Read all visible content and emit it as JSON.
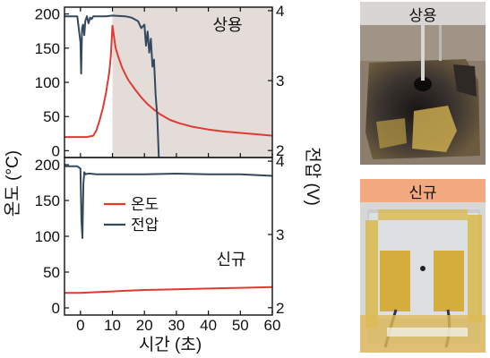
{
  "chart_data": [
    {
      "type": "line",
      "panel_label": "상용",
      "x_range": [
        -5,
        60
      ],
      "x_ticks": [
        0,
        10,
        20,
        30,
        40,
        50,
        60
      ],
      "y_left": {
        "label": "온도 (°C)",
        "range": [
          -10,
          210
        ],
        "ticks": [
          0,
          50,
          100,
          150,
          200
        ]
      },
      "y_right": {
        "label": "전압 (V)",
        "range": [
          1.9,
          4.05
        ],
        "ticks": [
          2,
          3,
          4
        ]
      },
      "shaded_region_x": [
        10,
        60
      ],
      "series": [
        {
          "name": "온도",
          "axis": "left",
          "color": "#e03a32",
          "x": [
            -5,
            2,
            4,
            5,
            6,
            7,
            8,
            9,
            9.5,
            10,
            11,
            12,
            13,
            14,
            15,
            17,
            19,
            21,
            23,
            25,
            28,
            31,
            35,
            40,
            45,
            50,
            55,
            60
          ],
          "y": [
            20,
            20,
            22,
            30,
            45,
            62,
            85,
            115,
            140,
            183,
            150,
            135,
            122,
            112,
            103,
            90,
            78,
            68,
            60,
            53,
            45,
            40,
            35,
            31,
            28,
            26,
            24,
            22
          ]
        },
        {
          "name": "전압",
          "axis": "right",
          "color": "#34495e",
          "x": [
            -5,
            -1,
            0,
            0.2,
            0.5,
            0.8,
            1.2,
            1.5,
            2,
            2.5,
            3,
            3.5,
            4,
            5,
            6,
            8,
            10,
            14,
            16,
            18,
            19,
            20,
            20.5,
            21,
            21.5,
            22,
            22.5,
            23,
            23.5,
            24,
            24.5
          ],
          "y": [
            3.92,
            3.92,
            3.55,
            3.1,
            3.75,
            3.8,
            3.65,
            3.85,
            3.92,
            3.82,
            3.9,
            3.88,
            3.92,
            3.92,
            3.92,
            3.92,
            3.93,
            3.92,
            3.9,
            3.85,
            3.75,
            3.8,
            3.5,
            3.7,
            3.4,
            3.6,
            3.2,
            3.3,
            2.8,
            2.5,
            1.9
          ]
        }
      ]
    },
    {
      "type": "line",
      "panel_label": "신규",
      "x_range": [
        -5,
        60
      ],
      "x_ticks": [
        0,
        10,
        20,
        30,
        40,
        50,
        60
      ],
      "x_tick_labels": [
        "0",
        "10",
        "20",
        "30",
        "40",
        "50",
        "60"
      ],
      "xlabel": "시간 (초)",
      "y_left": {
        "label": "온도 (°C)",
        "range": [
          -10,
          210
        ],
        "ticks": [
          0,
          50,
          100,
          150,
          200
        ]
      },
      "y_right": {
        "label": "전압 (V)",
        "range": [
          1.9,
          4.05
        ],
        "ticks": [
          2,
          3,
          4
        ]
      },
      "legend": {
        "placement": "center-left",
        "entries": [
          "온도",
          "전압"
        ]
      },
      "series": [
        {
          "name": "온도",
          "axis": "left",
          "color": "#e03a32",
          "x": [
            -5,
            0,
            5,
            10,
            15,
            20,
            30,
            40,
            50,
            60
          ],
          "y": [
            21,
            21,
            22,
            23,
            24,
            25,
            26,
            27,
            28,
            29
          ]
        },
        {
          "name": "전압",
          "axis": "right",
          "color": "#34495e",
          "x": [
            -5,
            -1,
            0,
            0.3,
            0.6,
            0.9,
            1.2,
            1.6,
            2.2,
            3,
            5,
            10,
            20,
            30,
            40,
            50,
            55,
            60
          ],
          "y": [
            3.93,
            3.93,
            3.9,
            3.2,
            2.95,
            3.7,
            3.85,
            3.82,
            3.83,
            3.83,
            3.82,
            3.82,
            3.82,
            3.83,
            3.82,
            3.82,
            3.81,
            3.8
          ]
        }
      ]
    }
  ],
  "photos": [
    {
      "label": "상용",
      "label_bg": "#d9d5d2"
    },
    {
      "label": "신규",
      "label_bg": "#f2a97f"
    }
  ]
}
